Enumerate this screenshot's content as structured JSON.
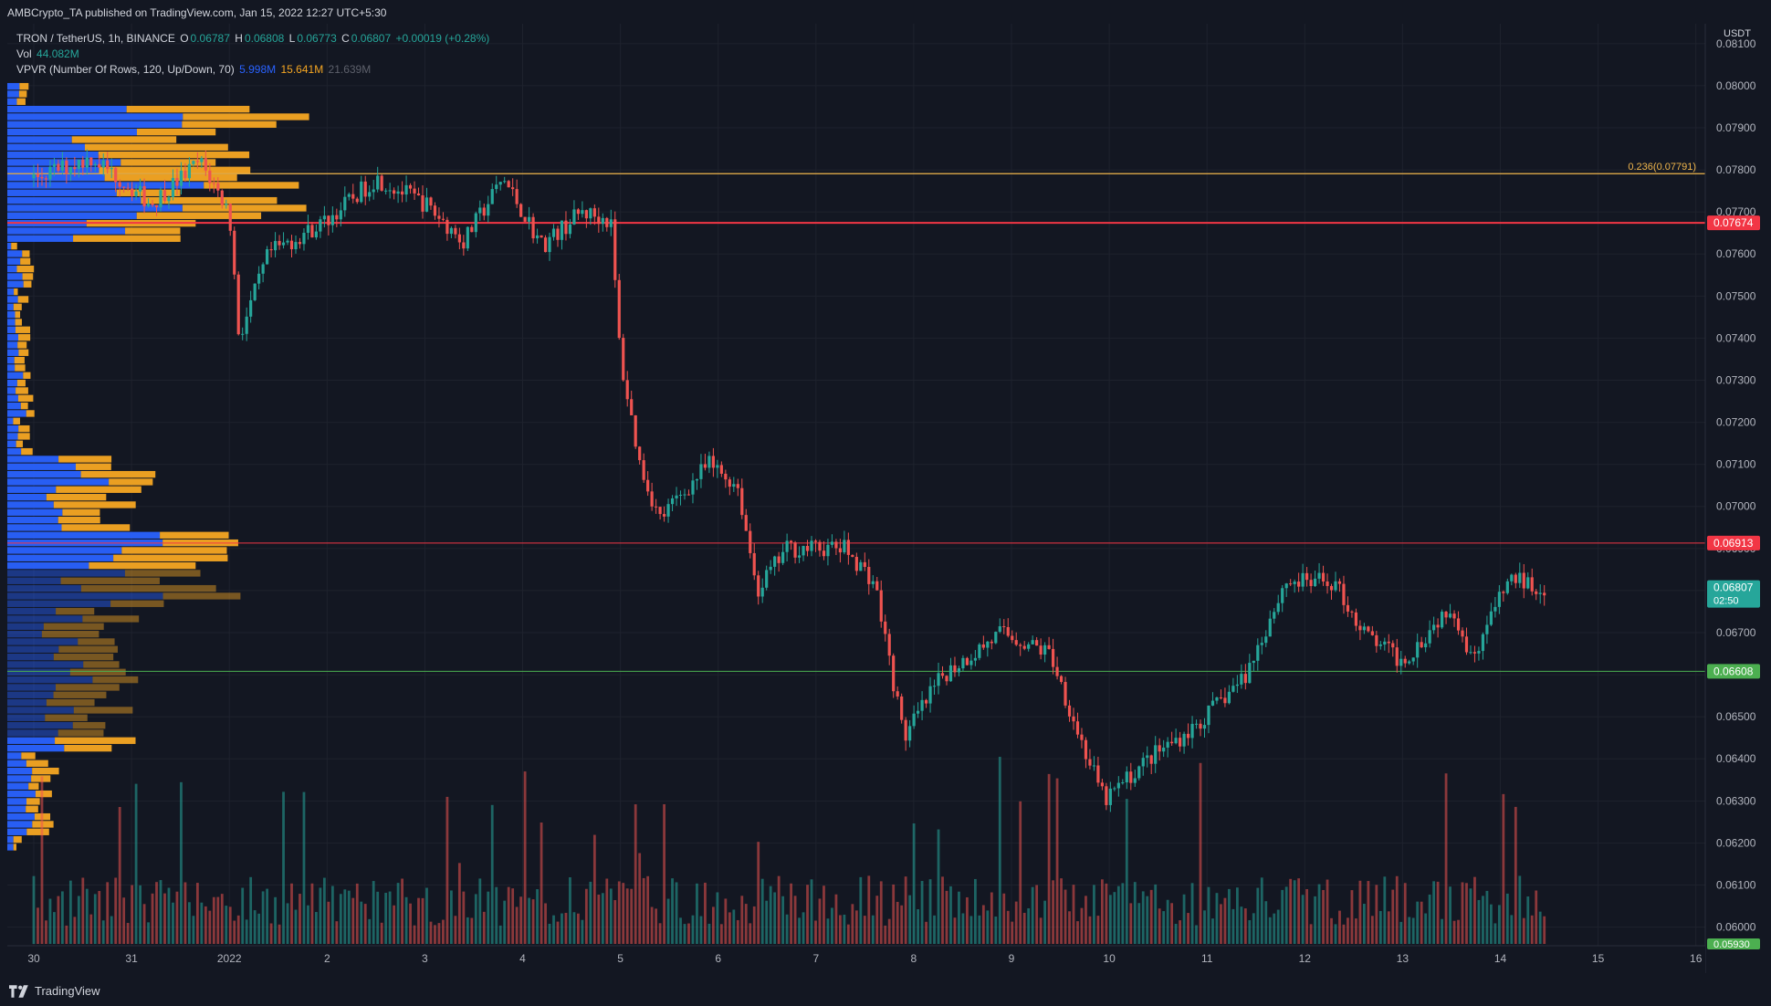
{
  "publish_line": "AMBCrypto_TA published on TradingView.com, Jan 15, 2022 12:27 UTC+5:30",
  "legend": {
    "symbol": "TRON / TetherUS, 1h, BINANCE",
    "open_label": "O",
    "open": "0.06787",
    "high_label": "H",
    "high": "0.06808",
    "low_label": "L",
    "low": "0.06773",
    "close_label": "C",
    "close": "0.06807",
    "change": "+0.00019 (+0.28%)",
    "vol_label": "Vol",
    "vol": "44.082M",
    "vpvr_label": "VPVR (Number Of Rows, 120, Up/Down, 70)",
    "vpvr_up": "5.998M",
    "vpvr_down": "15.641M",
    "vpvr_total": "21.639M"
  },
  "currency": "USDT",
  "price_ticks": [
    "0.08100",
    "0.08000",
    "0.07900",
    "0.07800",
    "0.07700",
    "0.07600",
    "0.07500",
    "0.07400",
    "0.07300",
    "0.07200",
    "0.07100",
    "0.07000",
    "0.06900",
    "0.06800",
    "0.06700",
    "0.06600",
    "0.06500",
    "0.06400",
    "0.06300",
    "0.06200",
    "0.06100",
    "0.06000"
  ],
  "time_ticks": [
    "30",
    "31",
    "2022",
    "2",
    "3",
    "4",
    "5",
    "6",
    "7",
    "8",
    "9",
    "10",
    "11",
    "12",
    "13",
    "14",
    "15",
    "16"
  ],
  "levels": {
    "fib": {
      "label": "0.236(0.07791)",
      "price": 0.07791,
      "color": "#f0b64c"
    },
    "red_strong": {
      "label": "0.07674",
      "price": 0.07674,
      "color": "#f23645"
    },
    "red_thin": {
      "label": "0.06913",
      "price": 0.06913,
      "color": "#f23645"
    },
    "green": {
      "label": "0.06608",
      "price": 0.06608,
      "color": "#4caf50"
    }
  },
  "last_price": {
    "label": "0.06807",
    "countdown": "02:50",
    "price": 0.06807,
    "color": "#26a69a"
  },
  "bottom_price_label": "0.05930",
  "colors": {
    "up": "#26a69a",
    "down": "#ef5350",
    "vp_up": "#2962ff",
    "vp_down": "#f5a623"
  },
  "logo": "TradingView",
  "chart_data": {
    "type": "candlestick",
    "title": "TRON / TetherUS, 1h, BINANCE",
    "ylim": [
      0.0596,
      0.0813
    ],
    "x_ticks": [
      "30",
      "31",
      "2022",
      "2",
      "3",
      "4",
      "5",
      "6",
      "7",
      "8",
      "9",
      "10",
      "11",
      "12",
      "13",
      "14",
      "15",
      "16"
    ],
    "price_path_anchors": [
      {
        "day": 0.0,
        "price": 0.0778
      },
      {
        "day": 0.6,
        "price": 0.0783
      },
      {
        "day": 1.2,
        "price": 0.0772
      },
      {
        "day": 1.7,
        "price": 0.0782
      },
      {
        "day": 2.0,
        "price": 0.077
      },
      {
        "day": 2.1,
        "price": 0.074
      },
      {
        "day": 2.4,
        "price": 0.076
      },
      {
        "day": 3.0,
        "price": 0.0768
      },
      {
        "day": 3.5,
        "price": 0.0778
      },
      {
        "day": 4.0,
        "price": 0.0772
      },
      {
        "day": 4.4,
        "price": 0.0763
      },
      {
        "day": 4.8,
        "price": 0.0778
      },
      {
        "day": 5.2,
        "price": 0.0762
      },
      {
        "day": 5.6,
        "price": 0.077
      },
      {
        "day": 5.9,
        "price": 0.0768
      },
      {
        "day": 6.0,
        "price": 0.0735
      },
      {
        "day": 6.2,
        "price": 0.071
      },
      {
        "day": 6.4,
        "price": 0.0697
      },
      {
        "day": 6.9,
        "price": 0.071
      },
      {
        "day": 7.2,
        "price": 0.0705
      },
      {
        "day": 7.4,
        "price": 0.068
      },
      {
        "day": 7.7,
        "price": 0.069
      },
      {
        "day": 8.3,
        "price": 0.069
      },
      {
        "day": 8.6,
        "price": 0.0682
      },
      {
        "day": 8.9,
        "price": 0.0645
      },
      {
        "day": 9.3,
        "price": 0.066
      },
      {
        "day": 9.9,
        "price": 0.067
      },
      {
        "day": 10.4,
        "price": 0.0665
      },
      {
        "day": 10.7,
        "price": 0.0645
      },
      {
        "day": 10.95,
        "price": 0.063
      },
      {
        "day": 11.4,
        "price": 0.064
      },
      {
        "day": 11.9,
        "price": 0.0648
      },
      {
        "day": 12.4,
        "price": 0.066
      },
      {
        "day": 12.8,
        "price": 0.0682
      },
      {
        "day": 13.3,
        "price": 0.0682
      },
      {
        "day": 13.6,
        "price": 0.067
      },
      {
        "day": 14.0,
        "price": 0.0663
      },
      {
        "day": 14.5,
        "price": 0.0677
      },
      {
        "day": 14.7,
        "price": 0.0664
      },
      {
        "day": 15.1,
        "price": 0.0683
      },
      {
        "day": 15.4,
        "price": 0.0681
      }
    ]
  }
}
